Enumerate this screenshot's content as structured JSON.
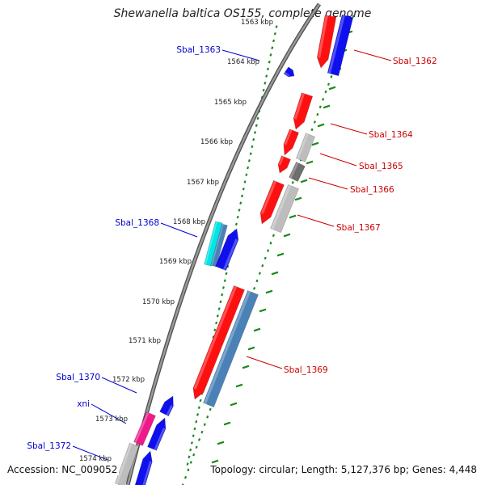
{
  "title": "Shewanella baltica OS155, complete genome",
  "accession": "Accession: NC_009052",
  "summary": "Topology: circular; Length: 5,127,376 bp; Genes: 4,448",
  "colors": {
    "backbone": "#7a7a7a",
    "ticks": "#1a8a1a",
    "forward_label": "#0000cc",
    "reverse_label": "#cc0000",
    "red": "#ff1010",
    "blue": "#1010ee",
    "gray": "#bdbdbd",
    "darkgray": "#6e6e6e",
    "cyan": "#00e5e5",
    "steel": "#4a82b8",
    "magenta": "#ee1a8a"
  },
  "kbp_ticks": [
    {
      "label": "1563 kbp",
      "pos": 1563
    },
    {
      "label": "1564 kbp",
      "pos": 1564
    },
    {
      "label": "1565 kbp",
      "pos": 1565
    },
    {
      "label": "1566 kbp",
      "pos": 1566
    },
    {
      "label": "1567 kbp",
      "pos": 1567
    },
    {
      "label": "1568 kbp",
      "pos": 1568
    },
    {
      "label": "1569 kbp",
      "pos": 1569
    },
    {
      "label": "1570 kbp",
      "pos": 1570
    },
    {
      "label": "1571 kbp",
      "pos": 1571
    },
    {
      "label": "1572 kbp",
      "pos": 1572
    },
    {
      "label": "1573 kbp",
      "pos": 1573
    },
    {
      "label": "1574 kbp",
      "pos": 1574
    }
  ],
  "gene_labels": [
    {
      "text": "Sbal_1362",
      "strand": "reverse"
    },
    {
      "text": "Sbal_1363",
      "strand": "forward"
    },
    {
      "text": "Sbal_1364",
      "strand": "reverse"
    },
    {
      "text": "Sbal_1365",
      "strand": "reverse"
    },
    {
      "text": "Sbal_1366",
      "strand": "reverse"
    },
    {
      "text": "Sbal_1367",
      "strand": "reverse"
    },
    {
      "text": "Sbal_1368",
      "strand": "forward"
    },
    {
      "text": "Sbal_1369",
      "strand": "reverse"
    },
    {
      "text": "Sbal_1370",
      "strand": "forward"
    },
    {
      "text": "xni",
      "strand": "forward"
    },
    {
      "text": "Sbal_1372",
      "strand": "forward"
    }
  ]
}
